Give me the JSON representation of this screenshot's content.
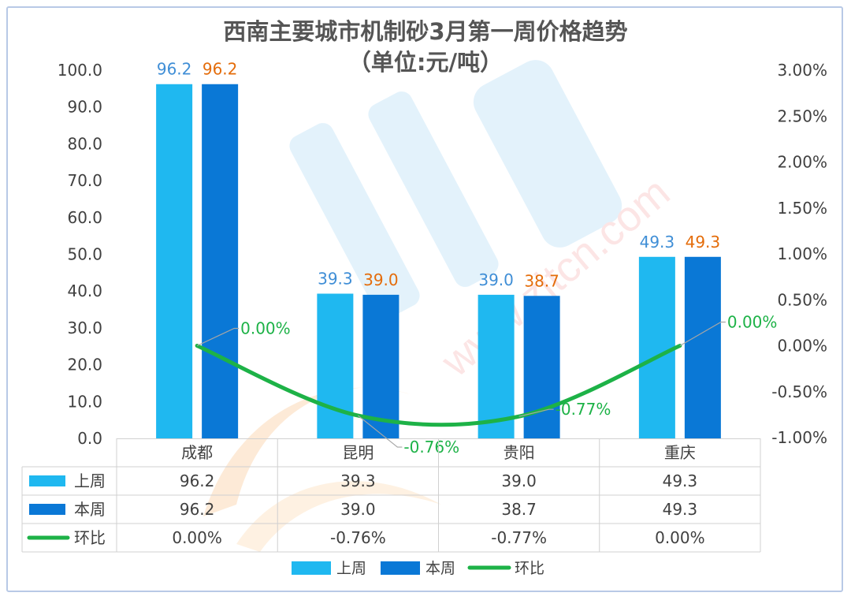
{
  "chart_data": {
    "type": "bar",
    "title": "西南主要城市机制砂3月第一周价格趋势",
    "subtitle": "（单位:元/吨）",
    "categories": [
      "成都",
      "昆明",
      "贵阳",
      "重庆"
    ],
    "series": [
      {
        "name": "上周",
        "kind": "bar",
        "axis": "left",
        "color": "#1fb8f0",
        "values": [
          96.2,
          39.3,
          39.0,
          49.3
        ],
        "labels": [
          "96.2",
          "39.3",
          "39.0",
          "49.3"
        ],
        "label_color": "#3f8ed6"
      },
      {
        "name": "本周",
        "kind": "bar",
        "axis": "left",
        "color": "#0a78d6",
        "values": [
          96.2,
          39.0,
          38.7,
          49.3
        ],
        "labels": [
          "96.2",
          "39.0",
          "38.7",
          "49.3"
        ],
        "label_color": "#e46c0a"
      },
      {
        "name": "环比",
        "kind": "line",
        "axis": "right",
        "color": "#1db247",
        "values": [
          0.0,
          -0.0076,
          -0.0077,
          0.0
        ],
        "labels": [
          "0.00%",
          "-0.76%",
          "-0.77%",
          "0.00%"
        ],
        "label_color": "#1db247"
      }
    ],
    "y_left": {
      "min": 0,
      "max": 100,
      "ticks": [
        "0.0",
        "10.0",
        "20.0",
        "30.0",
        "40.0",
        "50.0",
        "60.0",
        "70.0",
        "80.0",
        "90.0",
        "100.0"
      ]
    },
    "y_right": {
      "min": -0.01,
      "max": 0.03,
      "ticks": [
        "-1.00%",
        "-0.50%",
        "0.00%",
        "0.50%",
        "1.00%",
        "1.50%",
        "2.00%",
        "2.50%",
        "3.00%"
      ]
    },
    "grid": false,
    "legend": "bottom",
    "table": {
      "rows": [
        {
          "name": "上周",
          "cells": [
            "96.2",
            "39.3",
            "39.0",
            "49.3"
          ]
        },
        {
          "name": "本周",
          "cells": [
            "96.2",
            "39.0",
            "38.7",
            "49.3"
          ]
        },
        {
          "name": "环比",
          "cells": [
            "0.00%",
            "-0.76%",
            "-0.77%",
            "0.00%"
          ]
        }
      ]
    }
  }
}
